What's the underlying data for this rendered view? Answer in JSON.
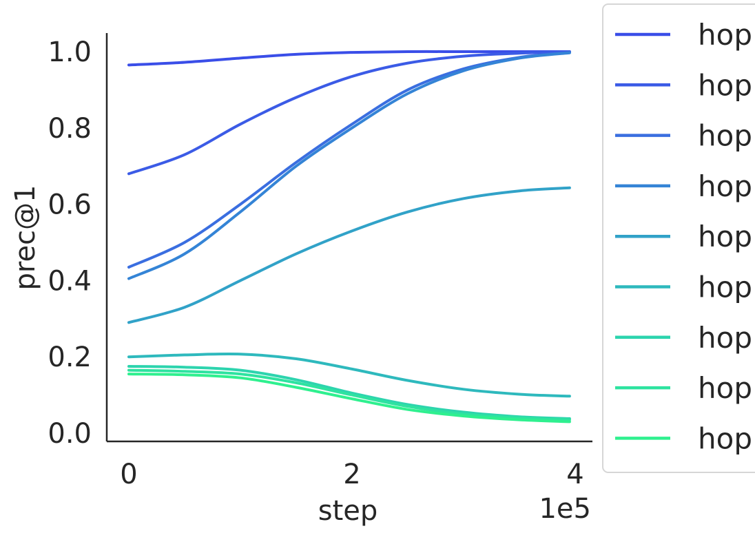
{
  "chart_data": {
    "type": "line",
    "xlabel": "step",
    "ylabel": "prec@1",
    "x_offset_label": "1e5",
    "xlim": [
      -0.1,
      4.1
    ],
    "ylim": [
      -0.02,
      1.05
    ],
    "xticks": [
      0,
      2,
      4
    ],
    "xtick_labels": [
      "0",
      "2",
      "4"
    ],
    "yticks": [
      0.0,
      0.2,
      0.4,
      0.6,
      0.8,
      1.0
    ],
    "ytick_labels": [
      "0.0",
      "0.2",
      "0.4",
      "0.6",
      "0.8",
      "1.0"
    ],
    "grid": false,
    "legend_position": "outside right",
    "x": [
      0,
      0.5,
      1.0,
      1.5,
      2.0,
      2.5,
      3.0,
      3.5,
      3.95
    ],
    "series": [
      {
        "name": "hop",
        "color": "#3a4ee8",
        "values": [
          0.965,
          0.972,
          0.983,
          0.993,
          0.998,
          1.0,
          1.0,
          1.0,
          1.0
        ]
      },
      {
        "name": "hop",
        "color": "#3b5be6",
        "values": [
          0.68,
          0.73,
          0.81,
          0.88,
          0.935,
          0.97,
          0.988,
          0.996,
          1.0
        ]
      },
      {
        "name": "hop",
        "color": "#3a6ee0",
        "values": [
          0.435,
          0.5,
          0.6,
          0.71,
          0.81,
          0.9,
          0.955,
          0.985,
          0.998
        ]
      },
      {
        "name": "hop",
        "color": "#3484d6",
        "values": [
          0.405,
          0.47,
          0.58,
          0.7,
          0.8,
          0.89,
          0.95,
          0.983,
          0.997
        ]
      },
      {
        "name": "hop",
        "color": "#31a2c8",
        "values": [
          0.29,
          0.33,
          0.4,
          0.47,
          0.53,
          0.58,
          0.615,
          0.635,
          0.643
        ]
      },
      {
        "name": "hop",
        "color": "#2eb9bd",
        "values": [
          0.2,
          0.205,
          0.207,
          0.195,
          0.168,
          0.138,
          0.115,
          0.102,
          0.097
        ]
      },
      {
        "name": "hop",
        "color": "#2dd4ae",
        "values": [
          0.175,
          0.173,
          0.165,
          0.14,
          0.105,
          0.075,
          0.055,
          0.043,
          0.038
        ]
      },
      {
        "name": "hop",
        "color": "#2ee3a0",
        "values": [
          0.165,
          0.162,
          0.155,
          0.132,
          0.1,
          0.07,
          0.05,
          0.04,
          0.035
        ]
      },
      {
        "name": "hop",
        "color": "#2ff08f",
        "values": [
          0.155,
          0.153,
          0.145,
          0.12,
          0.09,
          0.062,
          0.045,
          0.035,
          0.03
        ]
      }
    ]
  }
}
